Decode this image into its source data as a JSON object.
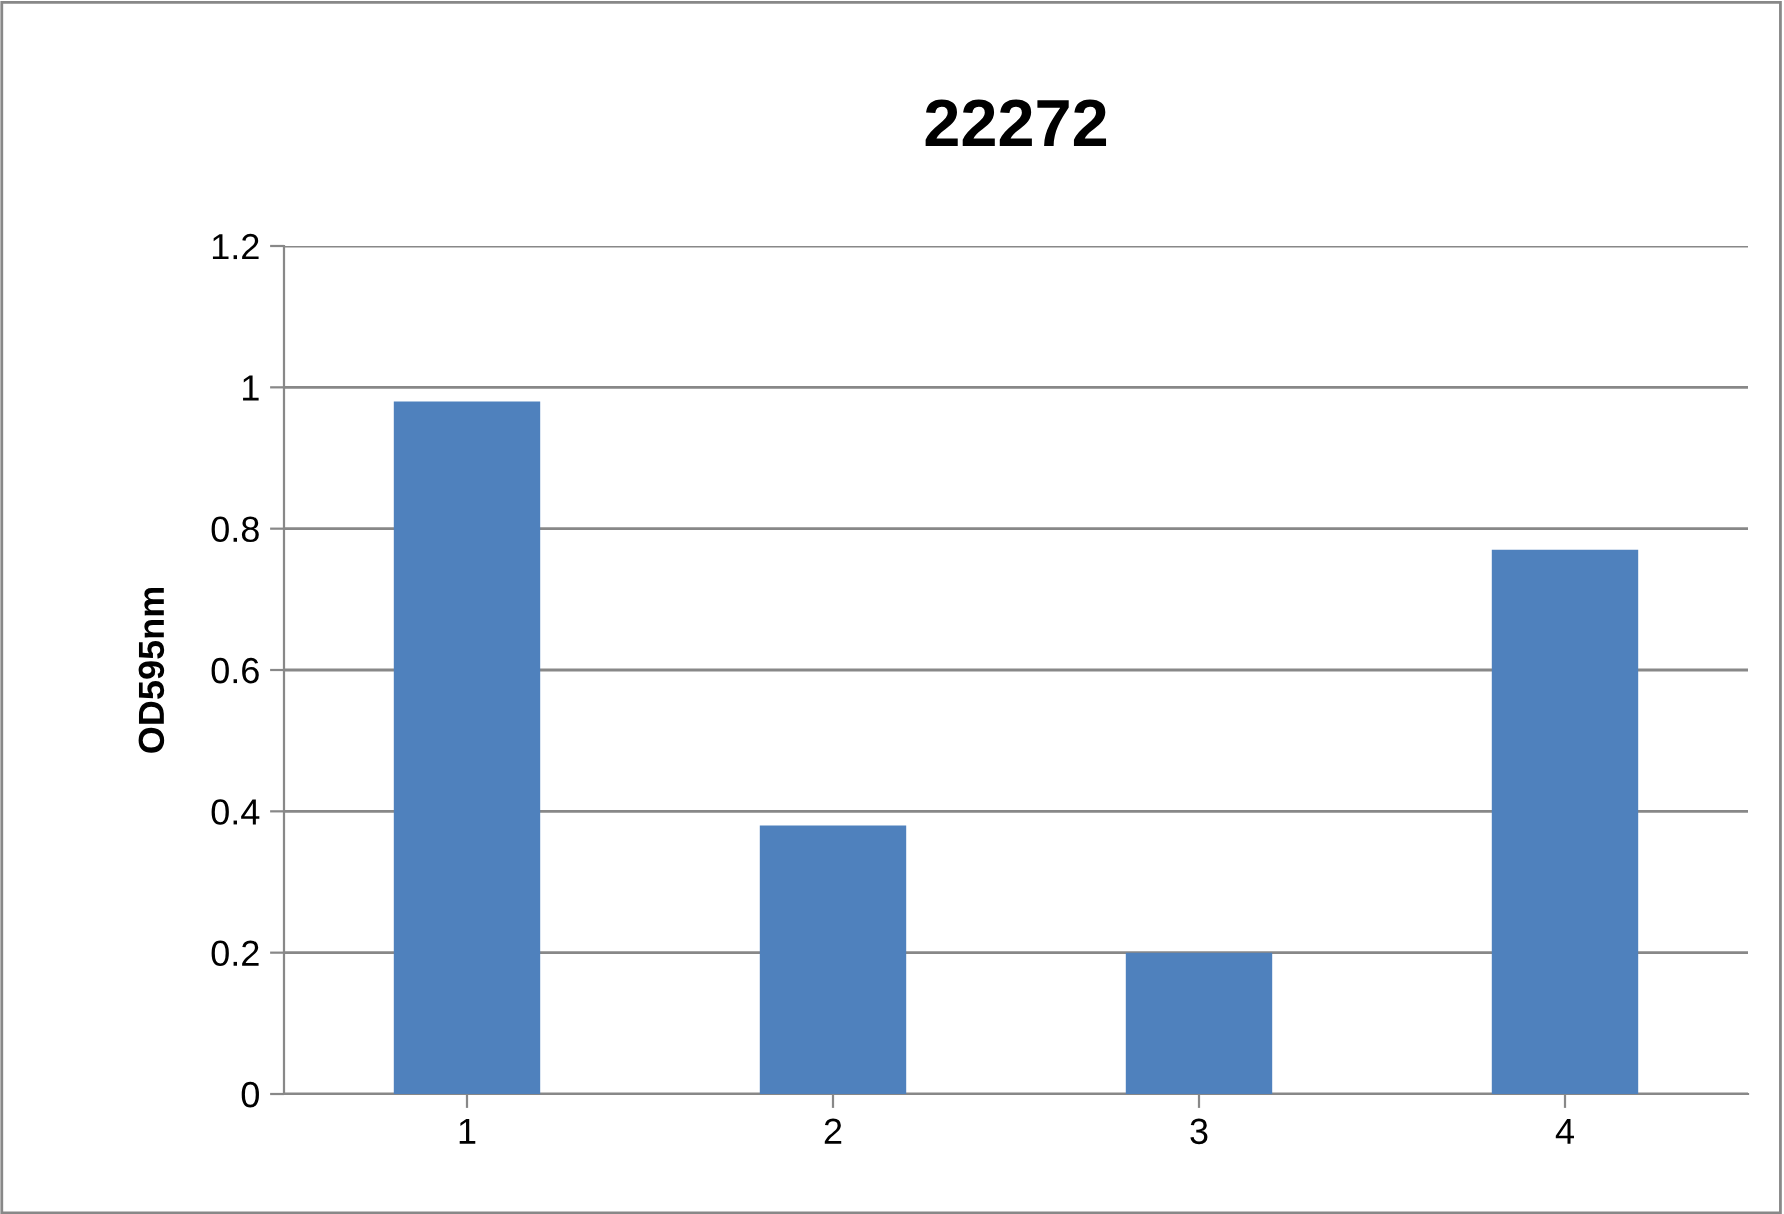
{
  "chart_data": {
    "type": "bar",
    "title": "22272",
    "ylabel": "OD595nm",
    "categories": [
      "1",
      "2",
      "3",
      "4"
    ],
    "values": [
      0.98,
      0.38,
      0.2,
      0.77
    ],
    "color": "#4f81bd",
    "ylim": [
      0,
      1.2
    ],
    "yticks": [
      0,
      0.2,
      0.4,
      0.6,
      0.8,
      1,
      1.2
    ],
    "grid": "y",
    "legend": false
  }
}
